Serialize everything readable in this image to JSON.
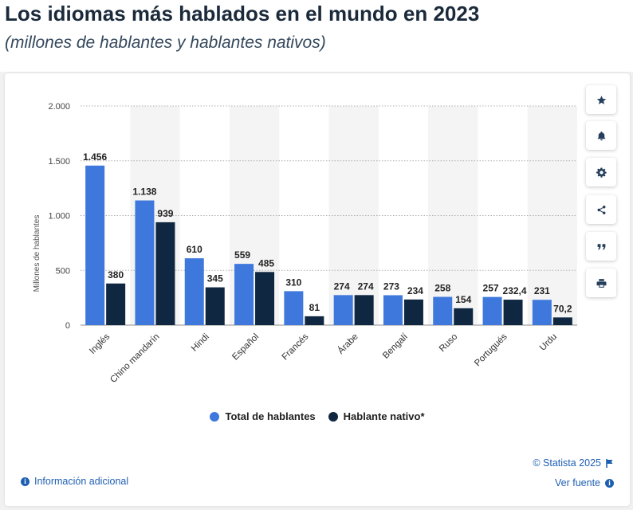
{
  "header": {
    "title": "Los idiomas más hablados en el mundo en 2023",
    "subtitle": "(millones de hablantes y hablantes nativos)"
  },
  "colors": {
    "series_total": "#3f78dc",
    "series_native": "#102741",
    "accent": "#1e5fb3"
  },
  "chart_data": {
    "type": "bar",
    "title": "Los idiomas más hablados en el mundo en 2023",
    "subtitle": "(millones de hablantes y hablantes nativos)",
    "xlabel": "",
    "ylabel": "Millones de hablantes",
    "ylim": [
      0,
      2000
    ],
    "yticks": [
      0,
      500,
      1000,
      1500,
      2000
    ],
    "ytick_labels": [
      "0",
      "500",
      "1.000",
      "1.500",
      "2.000"
    ],
    "grid": true,
    "legend_position": "bottom",
    "categories": [
      "Inglés",
      "Chino mandarín",
      "Hindi",
      "Español",
      "Francés",
      "Árabe",
      "Bengalí",
      "Ruso",
      "Portugués",
      "Urdu"
    ],
    "series": [
      {
        "name": "Total de hablantes",
        "color": "#3f78dc",
        "values": [
          1456,
          1138,
          610,
          559,
          310,
          274,
          273,
          258,
          257,
          231
        ],
        "labels": [
          "1.456",
          "1.138",
          "610",
          "559",
          "310",
          "274",
          "273",
          "258",
          "257",
          "231"
        ]
      },
      {
        "name": "Hablante nativo*",
        "color": "#102741",
        "values": [
          380,
          939,
          345,
          485,
          81,
          274,
          234,
          154,
          232.4,
          70.2
        ],
        "labels": [
          "380",
          "939",
          "345",
          "485",
          "81",
          "274",
          "234",
          "154",
          "232,4",
          "70,2"
        ]
      }
    ]
  },
  "toolbar": {
    "buttons": [
      {
        "name": "favorite-button",
        "icon": "star-icon"
      },
      {
        "name": "notification-button",
        "icon": "bell-icon"
      },
      {
        "name": "settings-button",
        "icon": "gear-icon"
      },
      {
        "name": "share-button",
        "icon": "share-icon"
      },
      {
        "name": "cite-button",
        "icon": "quote-icon"
      },
      {
        "name": "print-button",
        "icon": "print-icon"
      }
    ]
  },
  "footer": {
    "info_label": "Información adicional",
    "copyright": "© Statista 2025",
    "source_label": "Ver fuente"
  }
}
